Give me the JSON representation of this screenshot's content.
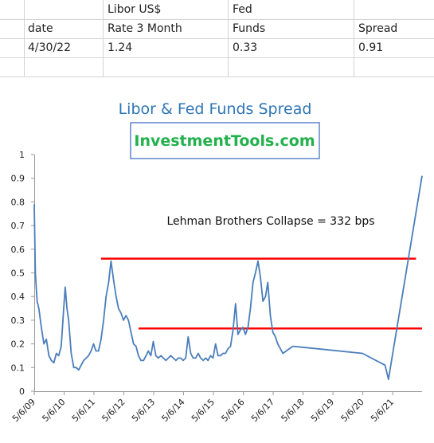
{
  "sheet": {
    "header_row1": [
      "",
      "Libor US$",
      "Fed",
      ""
    ],
    "header_row2": [
      "date",
      "Rate 3 Month",
      "Funds",
      "Spread"
    ],
    "row": [
      "4/30/22",
      "1.24",
      "0.33",
      "0.91"
    ]
  },
  "chart_data": {
    "type": "line",
    "title": "Libor & Fed Funds Spread",
    "watermark": "InvestmentTools.com",
    "annotation": "Lehman Brothers Collapse = 332 bps",
    "ylim": [
      0,
      1
    ],
    "yticks": [
      "0",
      "0.1",
      "0.2",
      "0.3",
      "0.4",
      "0.5",
      "0.6",
      "0.7",
      "0.8",
      "0.9",
      "1"
    ],
    "xlim": [
      "2009-05-06",
      "2022-04-30"
    ],
    "xticks": [
      "5/6/09",
      "5/6/10",
      "5/6/11",
      "5/6/12",
      "5/6/13",
      "5/6/14",
      "5/6/15",
      "5/6/16",
      "5/6/17",
      "5/6/18",
      "5/6/19",
      "5/6/20",
      "5/6/21"
    ],
    "grid": false,
    "legend": "none",
    "colors": {
      "series": "#4a7ebb",
      "reference": "#ff0000",
      "title": "#2e75b6",
      "watermark": "#22b14c"
    },
    "reference_lines": [
      {
        "from": "2011-08-01",
        "to": "2022-02-15",
        "value": 0.56
      },
      {
        "from": "2012-11-01",
        "to": "2022-04-30",
        "value": 0.265
      }
    ],
    "series": [
      {
        "x": [
          "2009-05-06",
          "2009-05-20",
          "2009-06-10",
          "2009-07-01",
          "2009-08-01",
          "2009-09-01",
          "2009-10-01",
          "2009-11-01",
          "2009-12-01",
          "2010-01-01",
          "2010-02-01",
          "2010-03-01",
          "2010-04-01",
          "2010-05-01",
          "2010-05-20",
          "2010-06-10",
          "2010-07-01",
          "2010-08-01",
          "2010-09-01",
          "2010-10-01",
          "2010-11-01",
          "2010-12-01",
          "2011-01-01",
          "2011-02-01",
          "2011-03-01",
          "2011-04-01",
          "2011-05-01",
          "2011-05-20",
          "2011-06-01",
          "2011-07-01",
          "2011-08-01",
          "2011-09-01",
          "2011-10-01",
          "2011-11-01",
          "2011-12-01",
          "2012-01-01",
          "2012-02-01",
          "2012-03-01",
          "2012-04-01",
          "2012-05-01",
          "2012-06-01",
          "2012-07-01",
          "2012-08-01",
          "2012-09-01",
          "2012-10-01",
          "2012-11-01",
          "2012-12-01",
          "2013-01-01",
          "2013-02-01",
          "2013-03-01",
          "2013-04-01",
          "2013-05-01",
          "2013-06-01",
          "2013-07-01",
          "2013-08-01",
          "2013-09-01",
          "2013-10-01",
          "2013-11-01",
          "2013-12-01",
          "2014-01-01",
          "2014-02-01",
          "2014-03-01",
          "2014-04-01",
          "2014-05-01",
          "2014-06-01",
          "2014-07-01",
          "2014-08-01",
          "2014-09-01",
          "2014-10-01",
          "2014-11-01",
          "2014-12-01",
          "2015-01-01",
          "2015-02-01",
          "2015-03-01",
          "2015-04-01",
          "2015-05-01",
          "2015-06-01",
          "2015-07-01",
          "2015-08-01",
          "2015-09-01",
          "2015-10-01",
          "2015-11-01",
          "2015-12-01",
          "2016-01-01",
          "2016-02-01",
          "2016-03-01",
          "2016-04-01",
          "2016-05-01",
          "2016-06-01",
          "2016-07-01",
          "2016-08-01",
          "2016-09-01",
          "2016-10-01",
          "2016-11-01",
          "2016-12-01",
          "2017-01-01",
          "2017-02-01",
          "2017-03-01",
          "2017-04-01",
          "2017-05-01",
          "2017-06-01",
          "2017-07-01",
          "2017-09-01",
          "2018-01-01",
          "2020-05-01",
          "2021-02-01",
          "2021-03-15",
          "2022-04-30"
        ],
        "values": [
          0.79,
          0.5,
          0.38,
          0.35,
          0.27,
          0.2,
          0.22,
          0.15,
          0.13,
          0.12,
          0.16,
          0.15,
          0.19,
          0.35,
          0.44,
          0.35,
          0.3,
          0.16,
          0.1,
          0.1,
          0.09,
          0.11,
          0.13,
          0.14,
          0.15,
          0.17,
          0.2,
          0.18,
          0.17,
          0.17,
          0.22,
          0.3,
          0.4,
          0.46,
          0.55,
          0.47,
          0.4,
          0.35,
          0.33,
          0.3,
          0.32,
          0.3,
          0.25,
          0.2,
          0.19,
          0.15,
          0.13,
          0.13,
          0.15,
          0.17,
          0.15,
          0.21,
          0.15,
          0.14,
          0.15,
          0.14,
          0.13,
          0.14,
          0.15,
          0.14,
          0.13,
          0.14,
          0.14,
          0.13,
          0.14,
          0.23,
          0.16,
          0.14,
          0.14,
          0.16,
          0.14,
          0.13,
          0.14,
          0.13,
          0.15,
          0.14,
          0.2,
          0.15,
          0.15,
          0.16,
          0.16,
          0.18,
          0.19,
          0.26,
          0.37,
          0.24,
          0.26,
          0.27,
          0.24,
          0.27,
          0.35,
          0.46,
          0.5,
          0.55,
          0.48,
          0.38,
          0.4,
          0.46,
          0.32,
          0.25,
          0.23,
          0.2,
          0.16,
          0.19,
          0.16,
          0.11,
          0.05,
          0.91
        ]
      }
    ]
  }
}
